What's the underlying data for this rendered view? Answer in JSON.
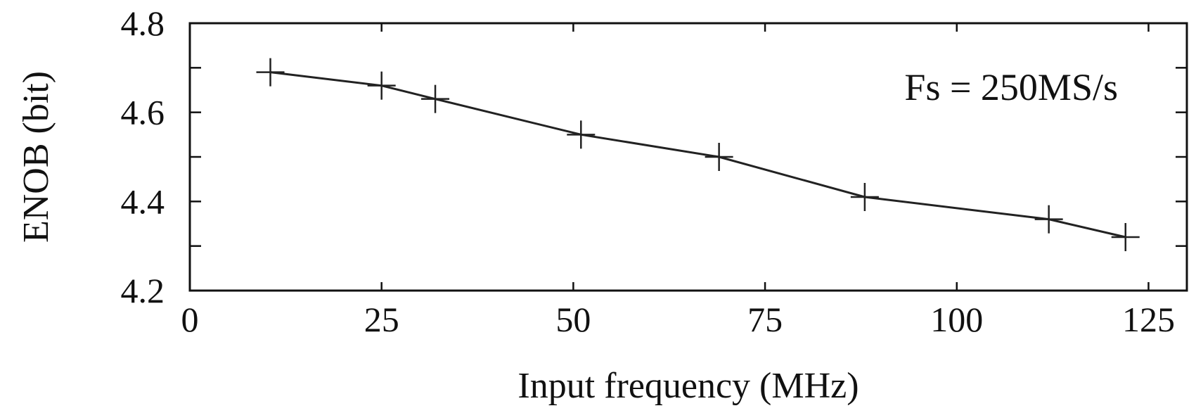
{
  "chart_data": {
    "type": "line",
    "title": "",
    "xlabel": "Input frequency (MHz)",
    "ylabel": "ENOB (bit)",
    "xlim": [
      0,
      130
    ],
    "ylim": [
      4.2,
      4.8
    ],
    "x_ticks": [
      0,
      25,
      50,
      75,
      100,
      125
    ],
    "x_tick_labels": [
      "0",
      "25",
      "50",
      "75",
      "100",
      "125"
    ],
    "y_ticks": [
      4.2,
      4.3,
      4.4,
      4.5,
      4.6,
      4.7,
      4.8
    ],
    "y_tick_labels": [
      "4.2",
      "",
      "4.4",
      "",
      "4.6",
      "",
      "4.8"
    ],
    "annotation": "Fs = 250MS/s",
    "grid": false,
    "series": [
      {
        "marker": "plus",
        "color": "#222222",
        "x": [
          10.5,
          25,
          32,
          51,
          69,
          88,
          112,
          122
        ],
        "y": [
          4.69,
          4.66,
          4.63,
          4.55,
          4.5,
          4.41,
          4.36,
          4.32
        ]
      }
    ]
  }
}
